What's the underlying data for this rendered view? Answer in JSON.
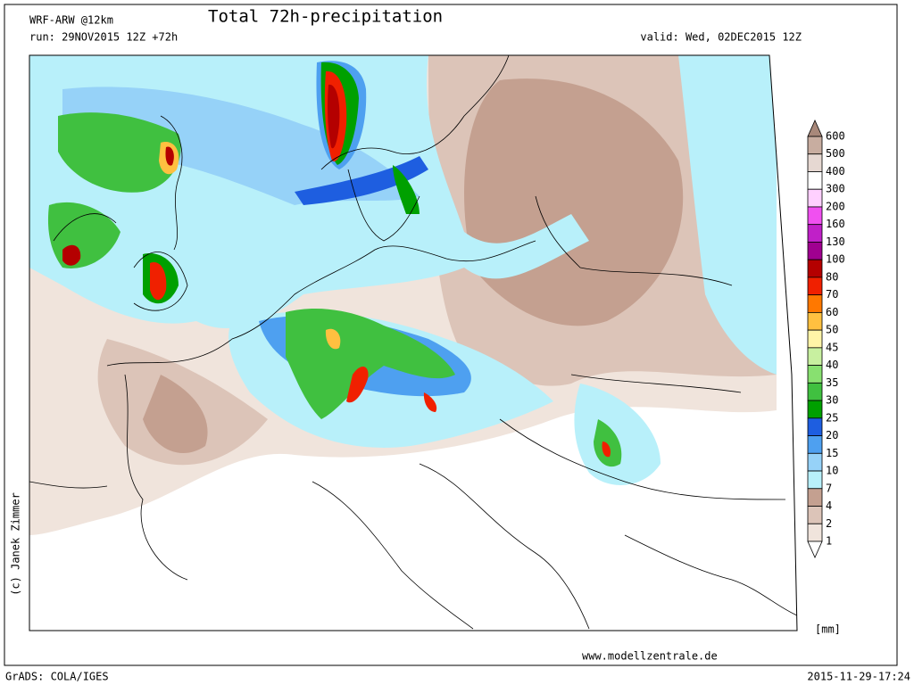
{
  "header": {
    "model": "WRF-ARW @12km",
    "title": "Total 72h-precipitation",
    "run": "run: 29NOV2015 12Z +72h",
    "valid": "valid: Wed, 02DEC2015 12Z"
  },
  "legend": {
    "levels": [
      600,
      500,
      400,
      300,
      200,
      160,
      130,
      100,
      80,
      70,
      60,
      50,
      45,
      40,
      35,
      30,
      25,
      20,
      15,
      10,
      7,
      4,
      2,
      1
    ],
    "colors": [
      "#a8887a",
      "#c8ada0",
      "#e6d8d2",
      "#ffffff",
      "#ffd0ff",
      "#f050f0",
      "#c020c8",
      "#a00090",
      "#b40000",
      "#f02000",
      "#ff7800",
      "#ffc040",
      "#fff4a8",
      "#c8f0a0",
      "#88e070",
      "#40c040",
      "#00a000",
      "#1e5ee0",
      "#4ea0f0",
      "#96d2f8",
      "#b8f0fa",
      "#c4a090",
      "#dcc4b8",
      "#f0e4dc",
      "#ffffff"
    ],
    "unit": "[mm]"
  },
  "credit": "(c) Janek Zimmer",
  "website": "www.modellzentrale.de",
  "footer": {
    "left": "GrADS: COLA/IGES",
    "right": "2015-11-29-17:24"
  }
}
